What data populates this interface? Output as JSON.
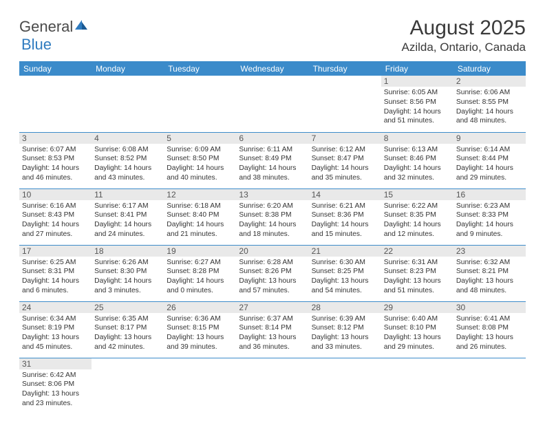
{
  "logo": {
    "general": "General",
    "blue": "Blue"
  },
  "title": {
    "month": "August 2025",
    "location": "Azilda, Ontario, Canada"
  },
  "colors": {
    "header_bg": "#3b8bca",
    "header_text": "#ffffff",
    "daynum_bg": "#e9e9e9",
    "row_border": "#3b8bca",
    "logo_blue": "#2f7bbf",
    "text": "#333333"
  },
  "weekdays": [
    "Sunday",
    "Monday",
    "Tuesday",
    "Wednesday",
    "Thursday",
    "Friday",
    "Saturday"
  ],
  "weeks": [
    [
      null,
      null,
      null,
      null,
      null,
      {
        "day": "1",
        "sunrise": "Sunrise: 6:05 AM",
        "sunset": "Sunset: 8:56 PM",
        "daylight1": "Daylight: 14 hours",
        "daylight2": "and 51 minutes."
      },
      {
        "day": "2",
        "sunrise": "Sunrise: 6:06 AM",
        "sunset": "Sunset: 8:55 PM",
        "daylight1": "Daylight: 14 hours",
        "daylight2": "and 48 minutes."
      }
    ],
    [
      {
        "day": "3",
        "sunrise": "Sunrise: 6:07 AM",
        "sunset": "Sunset: 8:53 PM",
        "daylight1": "Daylight: 14 hours",
        "daylight2": "and 46 minutes."
      },
      {
        "day": "4",
        "sunrise": "Sunrise: 6:08 AM",
        "sunset": "Sunset: 8:52 PM",
        "daylight1": "Daylight: 14 hours",
        "daylight2": "and 43 minutes."
      },
      {
        "day": "5",
        "sunrise": "Sunrise: 6:09 AM",
        "sunset": "Sunset: 8:50 PM",
        "daylight1": "Daylight: 14 hours",
        "daylight2": "and 40 minutes."
      },
      {
        "day": "6",
        "sunrise": "Sunrise: 6:11 AM",
        "sunset": "Sunset: 8:49 PM",
        "daylight1": "Daylight: 14 hours",
        "daylight2": "and 38 minutes."
      },
      {
        "day": "7",
        "sunrise": "Sunrise: 6:12 AM",
        "sunset": "Sunset: 8:47 PM",
        "daylight1": "Daylight: 14 hours",
        "daylight2": "and 35 minutes."
      },
      {
        "day": "8",
        "sunrise": "Sunrise: 6:13 AM",
        "sunset": "Sunset: 8:46 PM",
        "daylight1": "Daylight: 14 hours",
        "daylight2": "and 32 minutes."
      },
      {
        "day": "9",
        "sunrise": "Sunrise: 6:14 AM",
        "sunset": "Sunset: 8:44 PM",
        "daylight1": "Daylight: 14 hours",
        "daylight2": "and 29 minutes."
      }
    ],
    [
      {
        "day": "10",
        "sunrise": "Sunrise: 6:16 AM",
        "sunset": "Sunset: 8:43 PM",
        "daylight1": "Daylight: 14 hours",
        "daylight2": "and 27 minutes."
      },
      {
        "day": "11",
        "sunrise": "Sunrise: 6:17 AM",
        "sunset": "Sunset: 8:41 PM",
        "daylight1": "Daylight: 14 hours",
        "daylight2": "and 24 minutes."
      },
      {
        "day": "12",
        "sunrise": "Sunrise: 6:18 AM",
        "sunset": "Sunset: 8:40 PM",
        "daylight1": "Daylight: 14 hours",
        "daylight2": "and 21 minutes."
      },
      {
        "day": "13",
        "sunrise": "Sunrise: 6:20 AM",
        "sunset": "Sunset: 8:38 PM",
        "daylight1": "Daylight: 14 hours",
        "daylight2": "and 18 minutes."
      },
      {
        "day": "14",
        "sunrise": "Sunrise: 6:21 AM",
        "sunset": "Sunset: 8:36 PM",
        "daylight1": "Daylight: 14 hours",
        "daylight2": "and 15 minutes."
      },
      {
        "day": "15",
        "sunrise": "Sunrise: 6:22 AM",
        "sunset": "Sunset: 8:35 PM",
        "daylight1": "Daylight: 14 hours",
        "daylight2": "and 12 minutes."
      },
      {
        "day": "16",
        "sunrise": "Sunrise: 6:23 AM",
        "sunset": "Sunset: 8:33 PM",
        "daylight1": "Daylight: 14 hours",
        "daylight2": "and 9 minutes."
      }
    ],
    [
      {
        "day": "17",
        "sunrise": "Sunrise: 6:25 AM",
        "sunset": "Sunset: 8:31 PM",
        "daylight1": "Daylight: 14 hours",
        "daylight2": "and 6 minutes."
      },
      {
        "day": "18",
        "sunrise": "Sunrise: 6:26 AM",
        "sunset": "Sunset: 8:30 PM",
        "daylight1": "Daylight: 14 hours",
        "daylight2": "and 3 minutes."
      },
      {
        "day": "19",
        "sunrise": "Sunrise: 6:27 AM",
        "sunset": "Sunset: 8:28 PM",
        "daylight1": "Daylight: 14 hours",
        "daylight2": "and 0 minutes."
      },
      {
        "day": "20",
        "sunrise": "Sunrise: 6:28 AM",
        "sunset": "Sunset: 8:26 PM",
        "daylight1": "Daylight: 13 hours",
        "daylight2": "and 57 minutes."
      },
      {
        "day": "21",
        "sunrise": "Sunrise: 6:30 AM",
        "sunset": "Sunset: 8:25 PM",
        "daylight1": "Daylight: 13 hours",
        "daylight2": "and 54 minutes."
      },
      {
        "day": "22",
        "sunrise": "Sunrise: 6:31 AM",
        "sunset": "Sunset: 8:23 PM",
        "daylight1": "Daylight: 13 hours",
        "daylight2": "and 51 minutes."
      },
      {
        "day": "23",
        "sunrise": "Sunrise: 6:32 AM",
        "sunset": "Sunset: 8:21 PM",
        "daylight1": "Daylight: 13 hours",
        "daylight2": "and 48 minutes."
      }
    ],
    [
      {
        "day": "24",
        "sunrise": "Sunrise: 6:34 AM",
        "sunset": "Sunset: 8:19 PM",
        "daylight1": "Daylight: 13 hours",
        "daylight2": "and 45 minutes."
      },
      {
        "day": "25",
        "sunrise": "Sunrise: 6:35 AM",
        "sunset": "Sunset: 8:17 PM",
        "daylight1": "Daylight: 13 hours",
        "daylight2": "and 42 minutes."
      },
      {
        "day": "26",
        "sunrise": "Sunrise: 6:36 AM",
        "sunset": "Sunset: 8:15 PM",
        "daylight1": "Daylight: 13 hours",
        "daylight2": "and 39 minutes."
      },
      {
        "day": "27",
        "sunrise": "Sunrise: 6:37 AM",
        "sunset": "Sunset: 8:14 PM",
        "daylight1": "Daylight: 13 hours",
        "daylight2": "and 36 minutes."
      },
      {
        "day": "28",
        "sunrise": "Sunrise: 6:39 AM",
        "sunset": "Sunset: 8:12 PM",
        "daylight1": "Daylight: 13 hours",
        "daylight2": "and 33 minutes."
      },
      {
        "day": "29",
        "sunrise": "Sunrise: 6:40 AM",
        "sunset": "Sunset: 8:10 PM",
        "daylight1": "Daylight: 13 hours",
        "daylight2": "and 29 minutes."
      },
      {
        "day": "30",
        "sunrise": "Sunrise: 6:41 AM",
        "sunset": "Sunset: 8:08 PM",
        "daylight1": "Daylight: 13 hours",
        "daylight2": "and 26 minutes."
      }
    ],
    [
      {
        "day": "31",
        "sunrise": "Sunrise: 6:42 AM",
        "sunset": "Sunset: 8:06 PM",
        "daylight1": "Daylight: 13 hours",
        "daylight2": "and 23 minutes."
      },
      null,
      null,
      null,
      null,
      null,
      null
    ]
  ]
}
